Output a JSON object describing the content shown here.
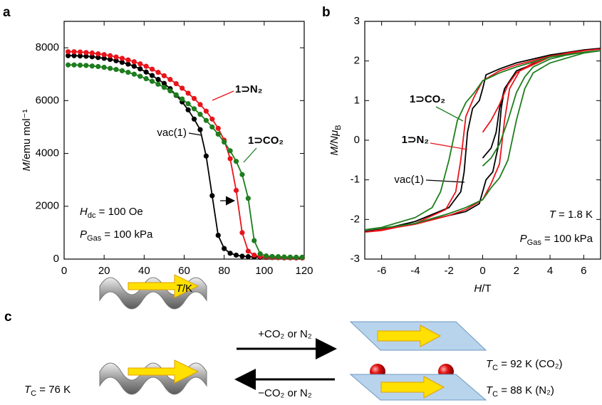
{
  "chart_data": [
    {
      "type": "line",
      "panel_label": "a",
      "markers": true,
      "xlabel": {
        "symbol": "T",
        "text": "/K"
      },
      "ylabel": {
        "symbol": "M",
        "text": "/emu mol⁻¹"
      },
      "xlim": [
        0,
        120
      ],
      "xticks": [
        0,
        20,
        40,
        60,
        80,
        100,
        120
      ],
      "ylim": [
        0,
        9000
      ],
      "yticks": [
        0,
        2000,
        4000,
        6000,
        8000
      ],
      "x": [
        2,
        5,
        8,
        11,
        14,
        17,
        20,
        23,
        26,
        29,
        32,
        35,
        38,
        41,
        44,
        47,
        50,
        53,
        56,
        59,
        62,
        65,
        68,
        71,
        74,
        77,
        80,
        83,
        86,
        89,
        92,
        95,
        98,
        101,
        104,
        107,
        110,
        113,
        116,
        119
      ],
      "series": [
        {
          "name": "vac(1)",
          "color": "#000000",
          "values": [
            7700,
            7700,
            7690,
            7680,
            7660,
            7630,
            7600,
            7560,
            7510,
            7450,
            7380,
            7300,
            7200,
            7080,
            6950,
            6800,
            6650,
            6450,
            6200,
            5950,
            5650,
            5300,
            4900,
            3900,
            2400,
            900,
            400,
            220,
            150,
            110,
            90,
            80,
            70,
            65,
            60,
            55,
            50,
            50,
            45,
            45
          ]
        },
        {
          "name": "1⊃N₂",
          "color": "#e8141b",
          "values": [
            7850,
            7850,
            7840,
            7820,
            7800,
            7770,
            7740,
            7700,
            7650,
            7600,
            7540,
            7470,
            7390,
            7300,
            7190,
            7070,
            6940,
            6800,
            6640,
            6470,
            6280,
            6080,
            5850,
            5600,
            5300,
            4950,
            4500,
            3800,
            2600,
            1000,
            300,
            150,
            100,
            80,
            70,
            60,
            55,
            50,
            50,
            50
          ]
        },
        {
          "name": "1⊃CO₂",
          "color": "#1e7d1e",
          "values": [
            7350,
            7350,
            7340,
            7330,
            7310,
            7290,
            7260,
            7220,
            7180,
            7130,
            7070,
            7000,
            6920,
            6830,
            6730,
            6620,
            6500,
            6370,
            6220,
            6060,
            5880,
            5690,
            5480,
            5250,
            5000,
            4730,
            4430,
            4100,
            3700,
            3200,
            2300,
            700,
            200,
            120,
            100,
            90,
            80,
            75,
            70,
            70
          ]
        }
      ],
      "annotations": [
        {
          "symbol": "H",
          "sub": "dc",
          "text": " = 100 Oe"
        },
        {
          "symbol": "P",
          "sub": "Gas",
          "text": " = 100 kPa"
        }
      ]
    },
    {
      "type": "line",
      "panel_label": "b",
      "markers": false,
      "xlabel": {
        "symbol": "H",
        "text": "/T"
      },
      "ylabel": {
        "symbol": "M/Nμ",
        "sub": "B"
      },
      "xlim": [
        -7,
        7
      ],
      "xticks": [
        -6,
        -4,
        -2,
        0,
        2,
        4,
        6
      ],
      "ylim": [
        -3,
        3
      ],
      "yticks": [
        -3,
        -2,
        -1,
        0,
        1,
        2,
        3
      ],
      "series": [
        {
          "name": "vac(1)",
          "color": "#000000",
          "x": [
            0,
            0.5,
            0.8,
            1.0,
            1.3,
            2,
            3,
            4,
            5,
            6,
            7,
            6,
            4,
            2,
            1,
            0.2,
            0,
            -0.2,
            -0.6,
            -0.9,
            -1.1,
            -1.3,
            -2,
            -4,
            -6,
            -7,
            -6,
            -4,
            -2,
            -1,
            -0.2,
            0,
            0.2,
            0.6,
            0.9,
            1.1,
            1.3,
            2,
            4,
            6,
            7
          ],
          "values": [
            -0.45,
            -0.2,
            0.2,
            0.8,
            1.3,
            1.7,
            1.95,
            2.1,
            2.2,
            2.28,
            2.32,
            2.28,
            2.15,
            1.95,
            1.8,
            1.65,
            1.3,
            1.0,
            0.8,
            0.2,
            -0.8,
            -1.3,
            -1.7,
            -2.05,
            -2.25,
            -2.3,
            -2.25,
            -2.1,
            -1.9,
            -1.8,
            -1.6,
            -1.3,
            -1.0,
            -0.8,
            -0.2,
            0.8,
            1.3,
            1.75,
            2.1,
            2.28,
            2.32
          ]
        },
        {
          "name": "1⊃N₂",
          "color": "#e8141b",
          "x": [
            0,
            0.5,
            1.0,
            1.5,
            2,
            3,
            4,
            5,
            6,
            7,
            6,
            4,
            2,
            1,
            0,
            -0.5,
            -1.0,
            -1.3,
            -1.6,
            -2.2,
            -4,
            -6,
            -7,
            -6,
            -4,
            -2,
            -1,
            0,
            0.5,
            1.0,
            1.3,
            1.6,
            2.2,
            4,
            6,
            7
          ],
          "values": [
            0.2,
            0.5,
            0.9,
            1.4,
            1.7,
            1.95,
            2.1,
            2.2,
            2.26,
            2.3,
            2.26,
            2.12,
            1.9,
            1.75,
            1.5,
            1.1,
            0.6,
            -0.5,
            -1.3,
            -1.75,
            -2.1,
            -2.28,
            -2.32,
            -2.26,
            -2.12,
            -1.9,
            -1.75,
            -1.5,
            -1.1,
            -0.6,
            0.5,
            1.3,
            1.75,
            2.1,
            2.26,
            2.3
          ]
        },
        {
          "name": "1⊃CO₂",
          "color": "#1e7d1e",
          "x": [
            0,
            0.5,
            1.0,
            1.5,
            2,
            2.5,
            3,
            4,
            5,
            6,
            7,
            6,
            4,
            2,
            1,
            0,
            -0.5,
            -1,
            -1.5,
            -2,
            -2.5,
            -3,
            -4,
            -6,
            -7,
            -6,
            -4,
            -2,
            -1,
            0,
            0.5,
            1,
            1.5,
            2,
            2.5,
            3,
            4,
            6,
            7
          ],
          "values": [
            -0.65,
            -0.45,
            -0.1,
            0.5,
            1.2,
            1.6,
            1.85,
            2.05,
            2.15,
            2.22,
            2.26,
            2.22,
            2.1,
            1.85,
            1.7,
            1.5,
            1.2,
            0.95,
            0.5,
            -0.5,
            -1.3,
            -1.7,
            -1.95,
            -2.2,
            -2.26,
            -2.22,
            -2.1,
            -1.85,
            -1.7,
            -1.5,
            -1.2,
            -0.95,
            -0.5,
            0.5,
            1.3,
            1.7,
            1.95,
            2.2,
            2.26
          ]
        }
      ],
      "annotations": [
        {
          "symbol": "T",
          "text": " = 1.8 K"
        },
        {
          "symbol": "P",
          "sub": "Gas",
          "text": " = 100 kPa"
        }
      ]
    }
  ],
  "scheme": {
    "panel_label": "c",
    "forward": "+CO₂ or N₂",
    "reverse": "−CO₂ or N₂",
    "tc_empty": {
      "symbol": "T",
      "sub": "C",
      "text": " = 76 K"
    },
    "tc_co2": {
      "symbol": "T",
      "sub": "C",
      "text": " = 92 K (CO₂)"
    },
    "tc_n2": {
      "symbol": "T",
      "sub": "C",
      "text": " = 88 K (N₂)"
    }
  }
}
